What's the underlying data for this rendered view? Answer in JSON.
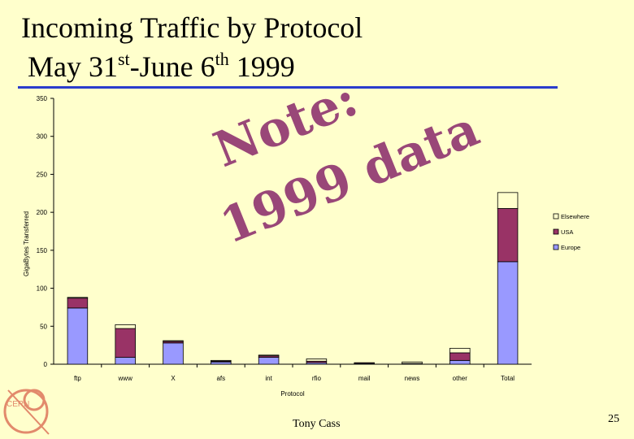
{
  "slide": {
    "title_line1": "Incoming Traffic by Protocol",
    "title_line2_a": "May 31",
    "title_line2_sup1": "st",
    "title_line2_b": "-June 6",
    "title_line2_sup2": "th",
    "title_line2_c": " 1999",
    "note_line1": "Note:",
    "note_line2": "1999 data",
    "author": "Tony Cass",
    "page_number": "25",
    "logo_text": "CERN"
  },
  "colors": {
    "Europe": "#9999ff",
    "USA": "#993366",
    "Elsewhere": "#ffffcc",
    "rule": "#2a3ccc",
    "note": "#8e3470"
  },
  "chart_data": {
    "type": "bar",
    "stacked": true,
    "categories": [
      "ftp",
      "www",
      "X",
      "afs",
      "int",
      "rfio",
      "mail",
      "news",
      "other",
      "Total"
    ],
    "series": [
      {
        "name": "Europe",
        "values": [
          74,
          9,
          28,
          3,
          9,
          2,
          1,
          1,
          5,
          135
        ]
      },
      {
        "name": "USA",
        "values": [
          13,
          38,
          2,
          1,
          2,
          2,
          1,
          0,
          10,
          70
        ]
      },
      {
        "name": "Elsewhere",
        "values": [
          1,
          5,
          1,
          1,
          1,
          3,
          0,
          2,
          6,
          21
        ]
      }
    ],
    "xlabel": "Protocol",
    "ylabel": "GigaBytes Transferred",
    "ylim": [
      0,
      350
    ],
    "yticks": [
      0,
      50,
      100,
      150,
      200,
      250,
      300,
      350
    ],
    "legend_order": [
      "Elsewhere",
      "USA",
      "Europe"
    ],
    "legend_position": "right",
    "grid": false
  }
}
